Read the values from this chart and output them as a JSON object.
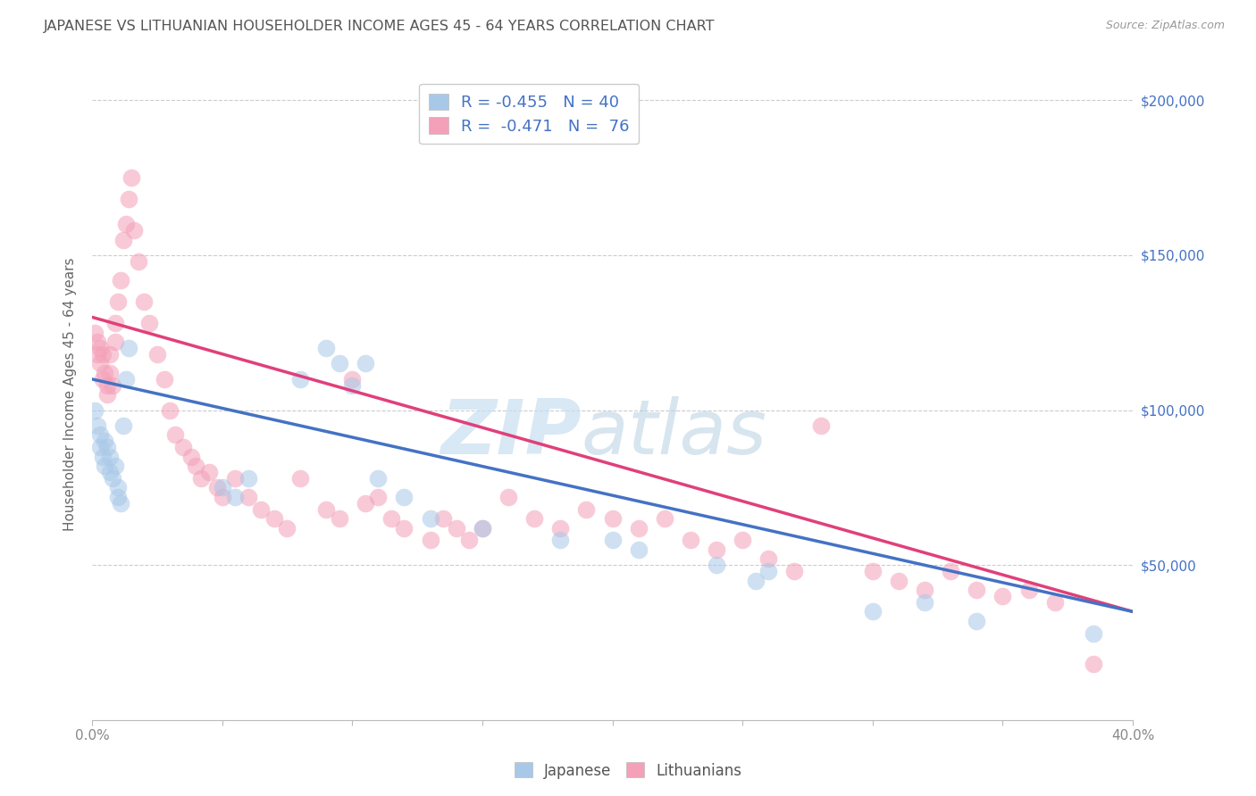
{
  "title": "JAPANESE VS LITHUANIAN HOUSEHOLDER INCOME AGES 45 - 64 YEARS CORRELATION CHART",
  "source": "Source: ZipAtlas.com",
  "ylabel": "Householder Income Ages 45 - 64 years",
  "xmin": 0.0,
  "xmax": 0.4,
  "ymin": 0,
  "ymax": 210000,
  "yticks": [
    0,
    50000,
    100000,
    150000,
    200000
  ],
  "ytick_labels": [
    "",
    "$50,000",
    "$100,000",
    "$150,000",
    "$200,000"
  ],
  "xticks": [
    0.0,
    0.05,
    0.1,
    0.15,
    0.2,
    0.25,
    0.3,
    0.35,
    0.4
  ],
  "japanese_R": -0.455,
  "japanese_N": 40,
  "lithuanian_R": -0.471,
  "lithuanian_N": 76,
  "japanese_color": "#a8c8e8",
  "lithuanian_color": "#f4a0b8",
  "japanese_line_color": "#4472c4",
  "lithuanian_line_color": "#e0407a",
  "japanese_x": [
    0.001,
    0.002,
    0.003,
    0.003,
    0.004,
    0.005,
    0.005,
    0.006,
    0.007,
    0.007,
    0.008,
    0.009,
    0.01,
    0.01,
    0.011,
    0.012,
    0.013,
    0.014,
    0.05,
    0.055,
    0.06,
    0.08,
    0.09,
    0.095,
    0.1,
    0.105,
    0.11,
    0.12,
    0.13,
    0.15,
    0.18,
    0.2,
    0.21,
    0.24,
    0.255,
    0.26,
    0.3,
    0.32,
    0.34,
    0.385
  ],
  "japanese_y": [
    100000,
    95000,
    92000,
    88000,
    85000,
    82000,
    90000,
    88000,
    80000,
    85000,
    78000,
    82000,
    75000,
    72000,
    70000,
    95000,
    110000,
    120000,
    75000,
    72000,
    78000,
    110000,
    120000,
    115000,
    108000,
    115000,
    78000,
    72000,
    65000,
    62000,
    58000,
    58000,
    55000,
    50000,
    45000,
    48000,
    35000,
    38000,
    32000,
    28000
  ],
  "lithuanian_x": [
    0.001,
    0.002,
    0.002,
    0.003,
    0.003,
    0.004,
    0.004,
    0.005,
    0.006,
    0.006,
    0.007,
    0.007,
    0.008,
    0.009,
    0.009,
    0.01,
    0.011,
    0.012,
    0.013,
    0.014,
    0.015,
    0.016,
    0.018,
    0.02,
    0.022,
    0.025,
    0.028,
    0.03,
    0.032,
    0.035,
    0.038,
    0.04,
    0.042,
    0.045,
    0.048,
    0.05,
    0.055,
    0.06,
    0.065,
    0.07,
    0.075,
    0.08,
    0.09,
    0.095,
    0.1,
    0.105,
    0.11,
    0.115,
    0.12,
    0.13,
    0.135,
    0.14,
    0.145,
    0.15,
    0.16,
    0.17,
    0.18,
    0.19,
    0.2,
    0.21,
    0.22,
    0.23,
    0.24,
    0.25,
    0.26,
    0.27,
    0.28,
    0.3,
    0.31,
    0.32,
    0.33,
    0.34,
    0.35,
    0.36,
    0.37,
    0.385
  ],
  "lithuanian_y": [
    125000,
    122000,
    118000,
    120000,
    115000,
    118000,
    110000,
    112000,
    108000,
    105000,
    112000,
    118000,
    108000,
    122000,
    128000,
    135000,
    142000,
    155000,
    160000,
    168000,
    175000,
    158000,
    148000,
    135000,
    128000,
    118000,
    110000,
    100000,
    92000,
    88000,
    85000,
    82000,
    78000,
    80000,
    75000,
    72000,
    78000,
    72000,
    68000,
    65000,
    62000,
    78000,
    68000,
    65000,
    110000,
    70000,
    72000,
    65000,
    62000,
    58000,
    65000,
    62000,
    58000,
    62000,
    72000,
    65000,
    62000,
    68000,
    65000,
    62000,
    65000,
    58000,
    55000,
    58000,
    52000,
    48000,
    95000,
    48000,
    45000,
    42000,
    48000,
    42000,
    40000,
    42000,
    38000,
    18000
  ],
  "watermark_zip": "ZIP",
  "watermark_atlas": "atlas",
  "background_color": "#ffffff",
  "grid_color": "#cccccc",
  "title_color": "#555555",
  "axis_color": "#4472c4",
  "scatter_size": 200,
  "scatter_alpha": 0.55,
  "line_width": 2.5
}
